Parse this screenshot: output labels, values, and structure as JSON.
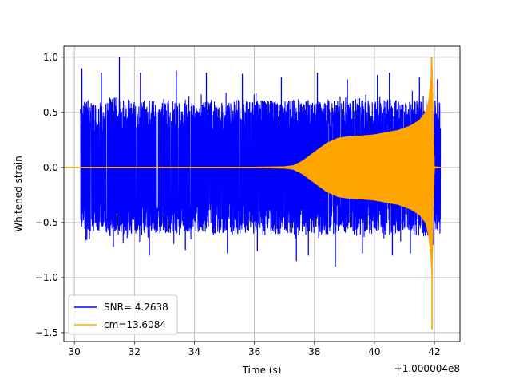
{
  "chart_data": {
    "type": "line",
    "title": "",
    "xlabel": "Time (s)",
    "ylabel": "Whitened strain",
    "xlim": [
      29.65,
      42.85
    ],
    "ylim": [
      -1.58,
      1.1
    ],
    "x_ticks": [
      30,
      32,
      34,
      36,
      38,
      40,
      42
    ],
    "x_tick_labels": [
      "30",
      "32",
      "34",
      "36",
      "38",
      "40",
      "42"
    ],
    "y_ticks": [
      -1.5,
      -1.0,
      -0.5,
      0.0,
      0.5,
      1.0
    ],
    "y_tick_labels": [
      "−1.5",
      "−1.0",
      "−0.5",
      "0.0",
      "0.5",
      "1.0"
    ],
    "x_offset_label": "+1.000004e8",
    "grid": true,
    "legend_position": "lower-left",
    "series": [
      {
        "name": "SNR= 4.2638",
        "color": "#0000ff",
        "kind": "noise",
        "x_range": [
          30.2,
          42.2
        ],
        "envelope_upper": [
          [
            30.2,
            0.55
          ],
          [
            30.4,
            0.62
          ],
          [
            30.8,
            0.58
          ],
          [
            31.2,
            0.64
          ],
          [
            31.5,
            0.65
          ],
          [
            32.0,
            0.6
          ],
          [
            32.5,
            0.62
          ],
          [
            33.0,
            0.6
          ],
          [
            33.5,
            0.64
          ],
          [
            34.0,
            0.58
          ],
          [
            34.5,
            0.62
          ],
          [
            35.0,
            0.6
          ],
          [
            35.5,
            0.62
          ],
          [
            36.0,
            0.6
          ],
          [
            36.5,
            0.62
          ],
          [
            37.0,
            0.6
          ],
          [
            37.5,
            0.63
          ],
          [
            38.0,
            0.6
          ],
          [
            38.5,
            0.62
          ],
          [
            39.0,
            0.6
          ],
          [
            39.5,
            0.63
          ],
          [
            40.0,
            0.61
          ],
          [
            40.5,
            0.62
          ],
          [
            41.0,
            0.6
          ],
          [
            41.5,
            0.62
          ],
          [
            41.9,
            0.63
          ],
          [
            42.2,
            0.6
          ]
        ],
        "envelope_lower": [
          [
            30.2,
            -0.55
          ],
          [
            30.4,
            -0.6
          ],
          [
            30.8,
            -0.58
          ],
          [
            31.2,
            -0.6
          ],
          [
            31.5,
            -0.62
          ],
          [
            32.0,
            -0.6
          ],
          [
            32.5,
            -0.62
          ],
          [
            33.0,
            -0.6
          ],
          [
            33.5,
            -0.62
          ],
          [
            34.0,
            -0.58
          ],
          [
            34.5,
            -0.6
          ],
          [
            35.0,
            -0.62
          ],
          [
            35.5,
            -0.6
          ],
          [
            36.0,
            -0.6
          ],
          [
            36.5,
            -0.62
          ],
          [
            37.0,
            -0.6
          ],
          [
            37.5,
            -0.63
          ],
          [
            38.0,
            -0.6
          ],
          [
            38.5,
            -0.62
          ],
          [
            39.0,
            -0.6
          ],
          [
            39.5,
            -0.63
          ],
          [
            40.0,
            -0.6
          ],
          [
            40.5,
            -0.62
          ],
          [
            41.0,
            -0.6
          ],
          [
            41.5,
            -0.62
          ],
          [
            41.9,
            -0.64
          ],
          [
            42.2,
            -0.6
          ]
        ],
        "spikes": [
          [
            30.25,
            0.9
          ],
          [
            30.5,
            -0.65
          ],
          [
            30.9,
            0.86
          ],
          [
            31.5,
            1.0
          ],
          [
            31.3,
            -0.72
          ],
          [
            32.2,
            0.86
          ],
          [
            32.5,
            -0.8
          ],
          [
            33.4,
            0.88
          ],
          [
            33.7,
            -0.75
          ],
          [
            34.4,
            0.86
          ],
          [
            35.1,
            -0.78
          ],
          [
            35.6,
            0.85
          ],
          [
            36.1,
            -0.76
          ],
          [
            36.9,
            0.82
          ],
          [
            37.4,
            -0.85
          ],
          [
            37.8,
            -0.8
          ],
          [
            38.1,
            0.86
          ],
          [
            38.7,
            -0.9
          ],
          [
            39.1,
            0.8
          ],
          [
            39.6,
            -0.78
          ],
          [
            40.1,
            0.84
          ],
          [
            40.5,
            0.86
          ],
          [
            40.6,
            -0.8
          ],
          [
            41.2,
            -0.78
          ],
          [
            41.5,
            0.82
          ],
          [
            41.85,
            -0.62
          ],
          [
            42.1,
            0.8
          ]
        ]
      },
      {
        "name": "cm=13.6084",
        "color": "#ffa500",
        "kind": "chirp",
        "x_range": [
          30.2,
          42.2
        ],
        "envelope": [
          [
            30.2,
            0.005
          ],
          [
            34.0,
            0.005
          ],
          [
            36.0,
            0.006
          ],
          [
            37.0,
            0.01
          ],
          [
            37.3,
            0.02
          ],
          [
            37.6,
            0.06
          ],
          [
            38.0,
            0.14
          ],
          [
            38.4,
            0.22
          ],
          [
            38.8,
            0.27
          ],
          [
            39.2,
            0.285
          ],
          [
            39.6,
            0.29
          ],
          [
            40.0,
            0.3
          ],
          [
            40.4,
            0.32
          ],
          [
            40.8,
            0.34
          ],
          [
            41.2,
            0.38
          ],
          [
            41.5,
            0.43
          ],
          [
            41.7,
            0.5
          ],
          [
            41.8,
            0.6
          ],
          [
            41.88,
            0.8
          ],
          [
            41.92,
            1.0
          ],
          [
            41.96,
            0.5
          ],
          [
            42.0,
            0.01
          ],
          [
            42.2,
            0.005
          ]
        ],
        "extrema": [
          [
            41.9,
            1.0
          ],
          [
            41.92,
            -1.47
          ]
        ]
      }
    ]
  }
}
